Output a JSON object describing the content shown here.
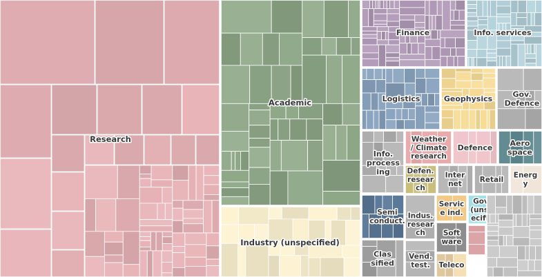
{
  "chart_data": {
    "type": "treemap",
    "title": "",
    "groups": [
      {
        "name": "Research",
        "label_lines": [
          "Research"
        ],
        "color": "#e8b4b8"
      },
      {
        "name": "Academic",
        "label_lines": [
          "Academic"
        ],
        "color": "#8fa888"
      },
      {
        "name": "Industry (unspecified)",
        "label_lines": [
          "Industry (unspecified)"
        ],
        "color": "#fdf3d2"
      },
      {
        "name": "Finance",
        "label_lines": [
          "Finance"
        ],
        "color": "#b39cba"
      },
      {
        "name": "Info. services",
        "label_lines": [
          "Info. services"
        ],
        "color": "#b4d2dc"
      },
      {
        "name": "Logistics",
        "label_lines": [
          "Logistics"
        ],
        "color": "#88a2be"
      },
      {
        "name": "Geophysics",
        "label_lines": [
          "Geophysics"
        ],
        "color": "#f8dc96"
      },
      {
        "name": "Gov. Defence",
        "label_lines": [
          "Gov.",
          "Defence"
        ],
        "color": "#b8b8b8"
      },
      {
        "name": "Info. processing",
        "label_lines": [
          "Info.",
          "process",
          "ing"
        ],
        "color": "#b4b4b4"
      },
      {
        "name": "Weather / Climate research",
        "label_lines": [
          "Weather",
          "/ Climate",
          "research"
        ],
        "color": "#e8a8aa"
      },
      {
        "name": "Defence",
        "label_lines": [
          "Defence"
        ],
        "color": "#f0c4c8"
      },
      {
        "name": "Aero space",
        "label_lines": [
          "Aero",
          "space"
        ],
        "color": "#5e8890"
      },
      {
        "name": "Defen. research",
        "label_lines": [
          "Defen.",
          "resear",
          "ch"
        ],
        "color": "#c8be7a"
      },
      {
        "name": "Inter net",
        "label_lines": [
          "Inter",
          "net"
        ],
        "color": "#b8b8b8"
      },
      {
        "name": "Retail",
        "label_lines": [
          "Retail"
        ],
        "color": "#b4b4b4"
      },
      {
        "name": "Energy",
        "label_lines": [
          "Energ",
          "y"
        ],
        "color": "#f0e4d8"
      },
      {
        "name": "Semi conduct.",
        "label_lines": [
          "Semi",
          "conduct."
        ],
        "color": "#5a7898"
      },
      {
        "name": "Indus. research",
        "label_lines": [
          "Indus.",
          "resear",
          "ch"
        ],
        "color": "#b8b8b8"
      },
      {
        "name": "Service ind.",
        "label_lines": [
          "Servic",
          "e ind."
        ],
        "color": "#f4c884"
      },
      {
        "name": "Gov. (unspecified)",
        "label_lines": [
          "Gov.",
          "(unsp",
          "ecifie"
        ],
        "color": "#a8e4ec"
      },
      {
        "name": "Software",
        "label_lines": [
          "Soft",
          "ware"
        ],
        "color": "#989898"
      },
      {
        "name": "Classified",
        "label_lines": [
          "Clas",
          "sified"
        ],
        "color": "#a8a8a8"
      },
      {
        "name": "Vend. test.",
        "label_lines": [
          "Vend.",
          "test."
        ],
        "color": "#b8b8b8"
      },
      {
        "name": "Teleco",
        "label_lines": [
          "Teleco"
        ],
        "color": "#f6dcae"
      },
      {
        "name": "",
        "label_lines": [],
        "color": "#a8c0a0"
      },
      {
        "name": "",
        "label_lines": [],
        "color": "#d89ca0"
      },
      {
        "name": "",
        "label_lines": [],
        "color": "#c8c8c8"
      }
    ]
  }
}
